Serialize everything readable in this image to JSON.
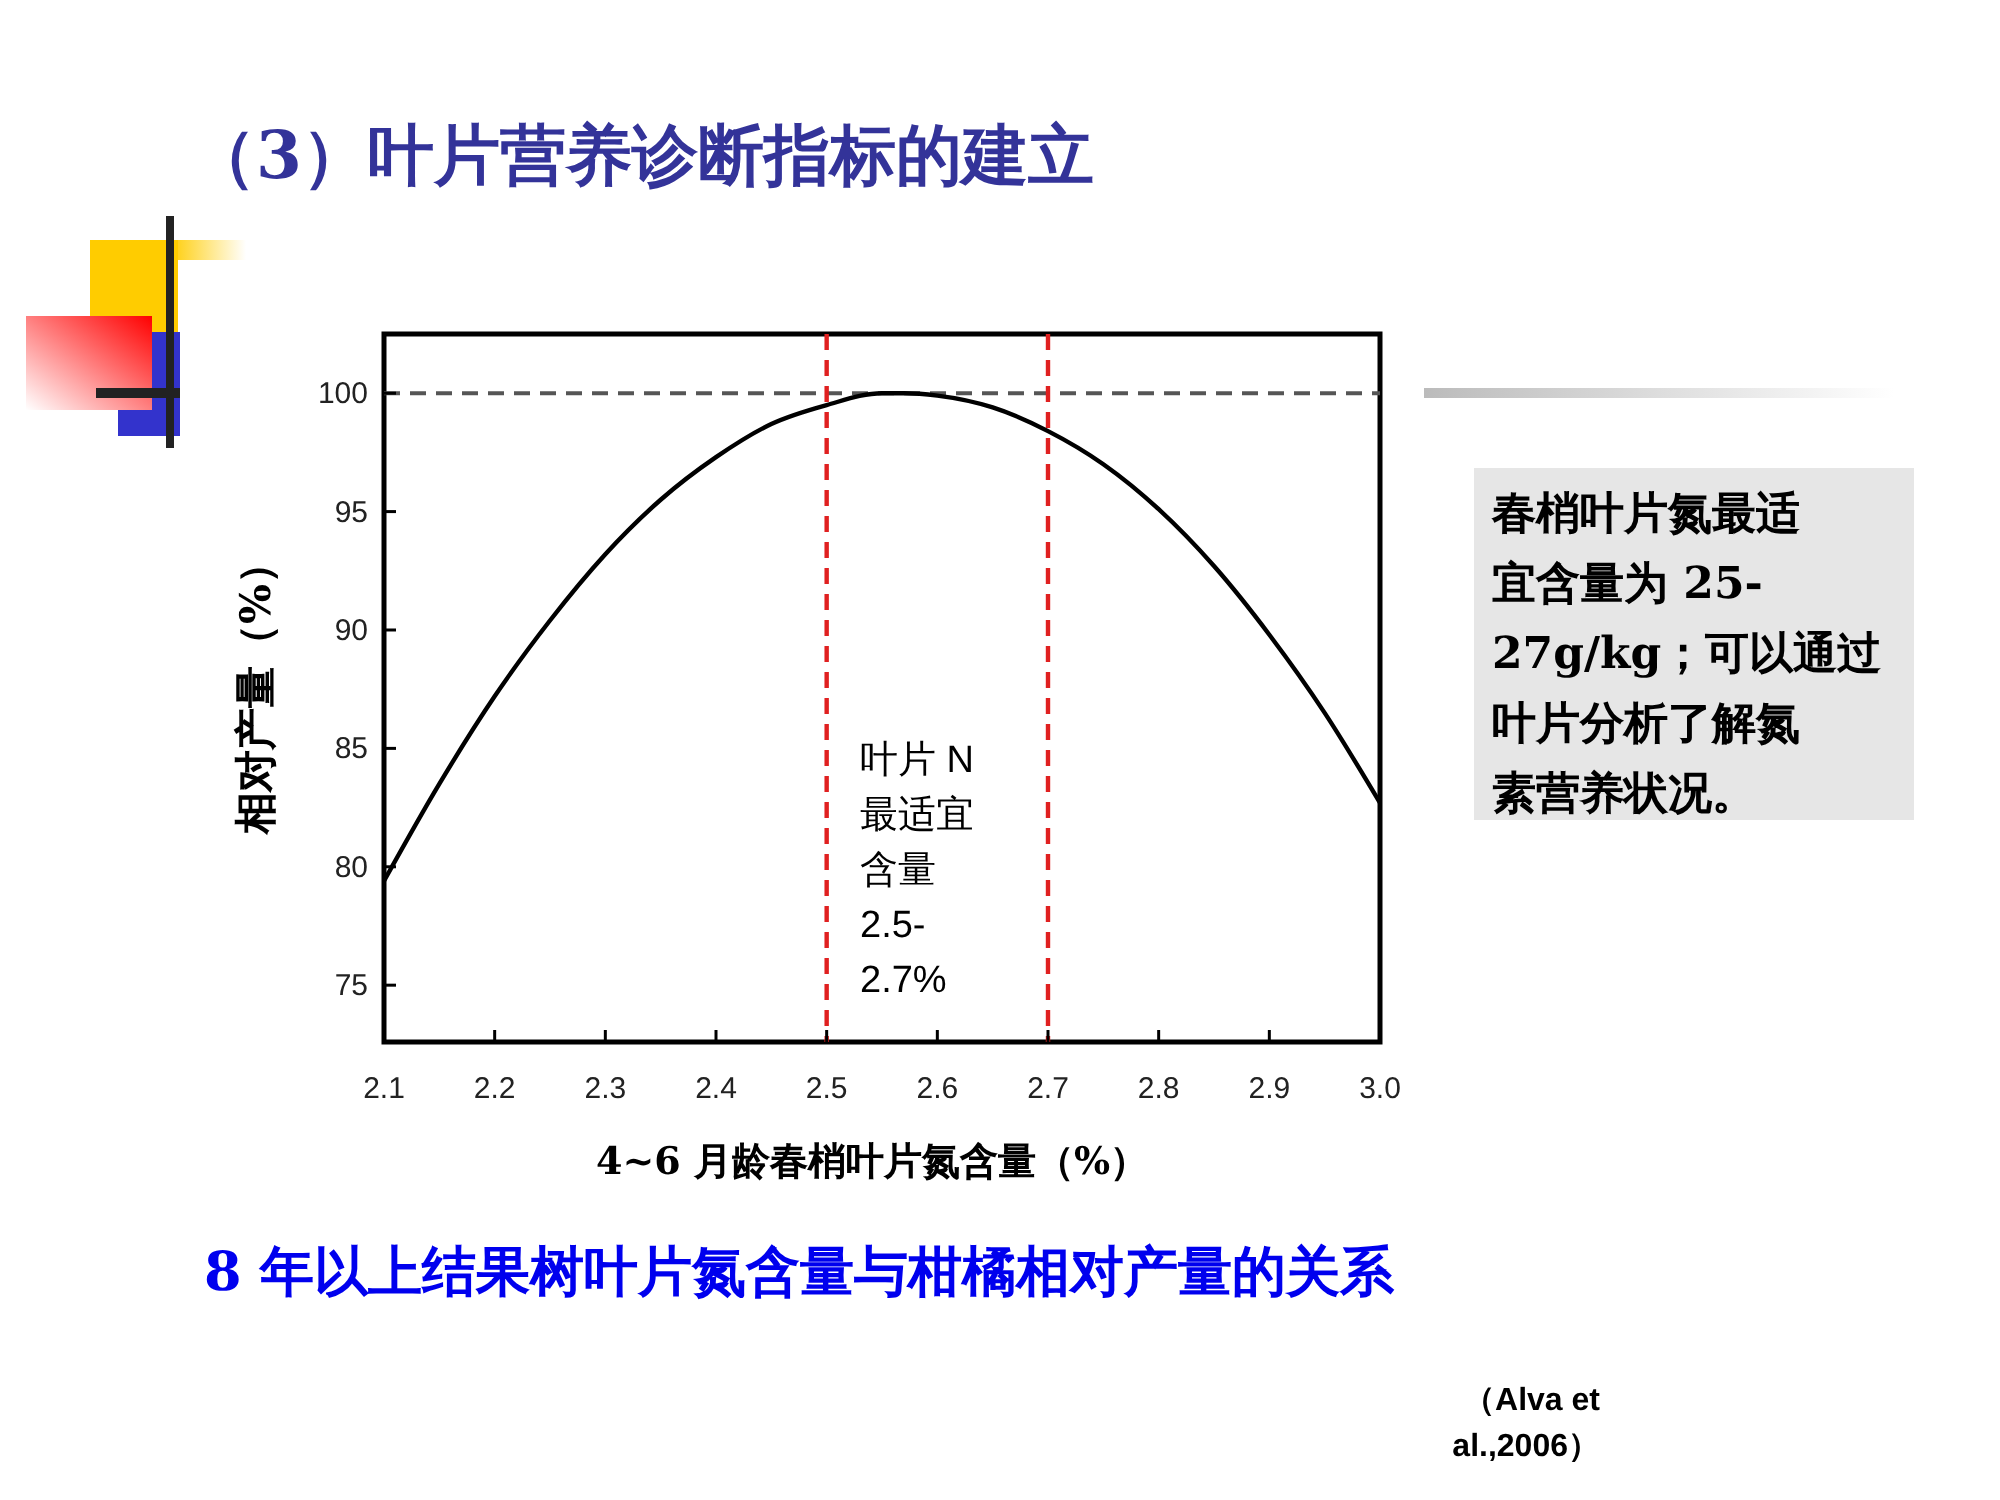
{
  "chart_data": {
    "type": "line",
    "title": "（3）叶片营养诊断指标的建立",
    "subtitle": "8 年以上结果树叶片氮含量与柑橘相对产量的关系",
    "xlabel": "4~6 月龄春梢叶片氮含量（%）",
    "ylabel": "相对产量（%）",
    "x": [
      2.1,
      2.15,
      2.2,
      2.25,
      2.3,
      2.35,
      2.4,
      2.45,
      2.5,
      2.55,
      2.57,
      2.6,
      2.65,
      2.7,
      2.75,
      2.8,
      2.85,
      2.9,
      2.95,
      3.0
    ],
    "series": [
      {
        "color": "#000000",
        "values": [
          79.4,
          83.5,
          87.2,
          90.4,
          93.2,
          95.5,
          97.3,
          98.7,
          99.5,
          100.0,
          100.0,
          99.9,
          99.4,
          98.4,
          97.0,
          95.1,
          92.7,
          89.8,
          86.5,
          82.7
        ]
      }
    ],
    "xlim": [
      2.1,
      3.0
    ],
    "ylim": [
      72.6,
      102.5
    ],
    "xticks": [
      2.1,
      2.2,
      2.3,
      2.4,
      2.5,
      2.6,
      2.7,
      2.8,
      2.9,
      {
        "value": 3,
        "label": "3.0"
      }
    ],
    "yticks": [
      75,
      80,
      85,
      90,
      95,
      100
    ],
    "grid": false,
    "marker": "none",
    "line_style": "solid",
    "ref_lines": [
      {
        "axis": "y",
        "value": 100,
        "color": "#555555",
        "line_style": "dashed"
      },
      {
        "axis": "x",
        "value": 2.5,
        "color": "#e02020",
        "line_style": "dashed"
      },
      {
        "axis": "x",
        "value": 2.7,
        "color": "#e02020",
        "line_style": "dashed"
      }
    ],
    "annotations": [
      "叶片 N最适宜含量2.5-2.7%",
      "春梢叶片氮最适宜含量为 25-27g/kg；可以通过叶片分析了解氮素营养状况。",
      "（Alva et al.,2006）"
    ]
  }
}
